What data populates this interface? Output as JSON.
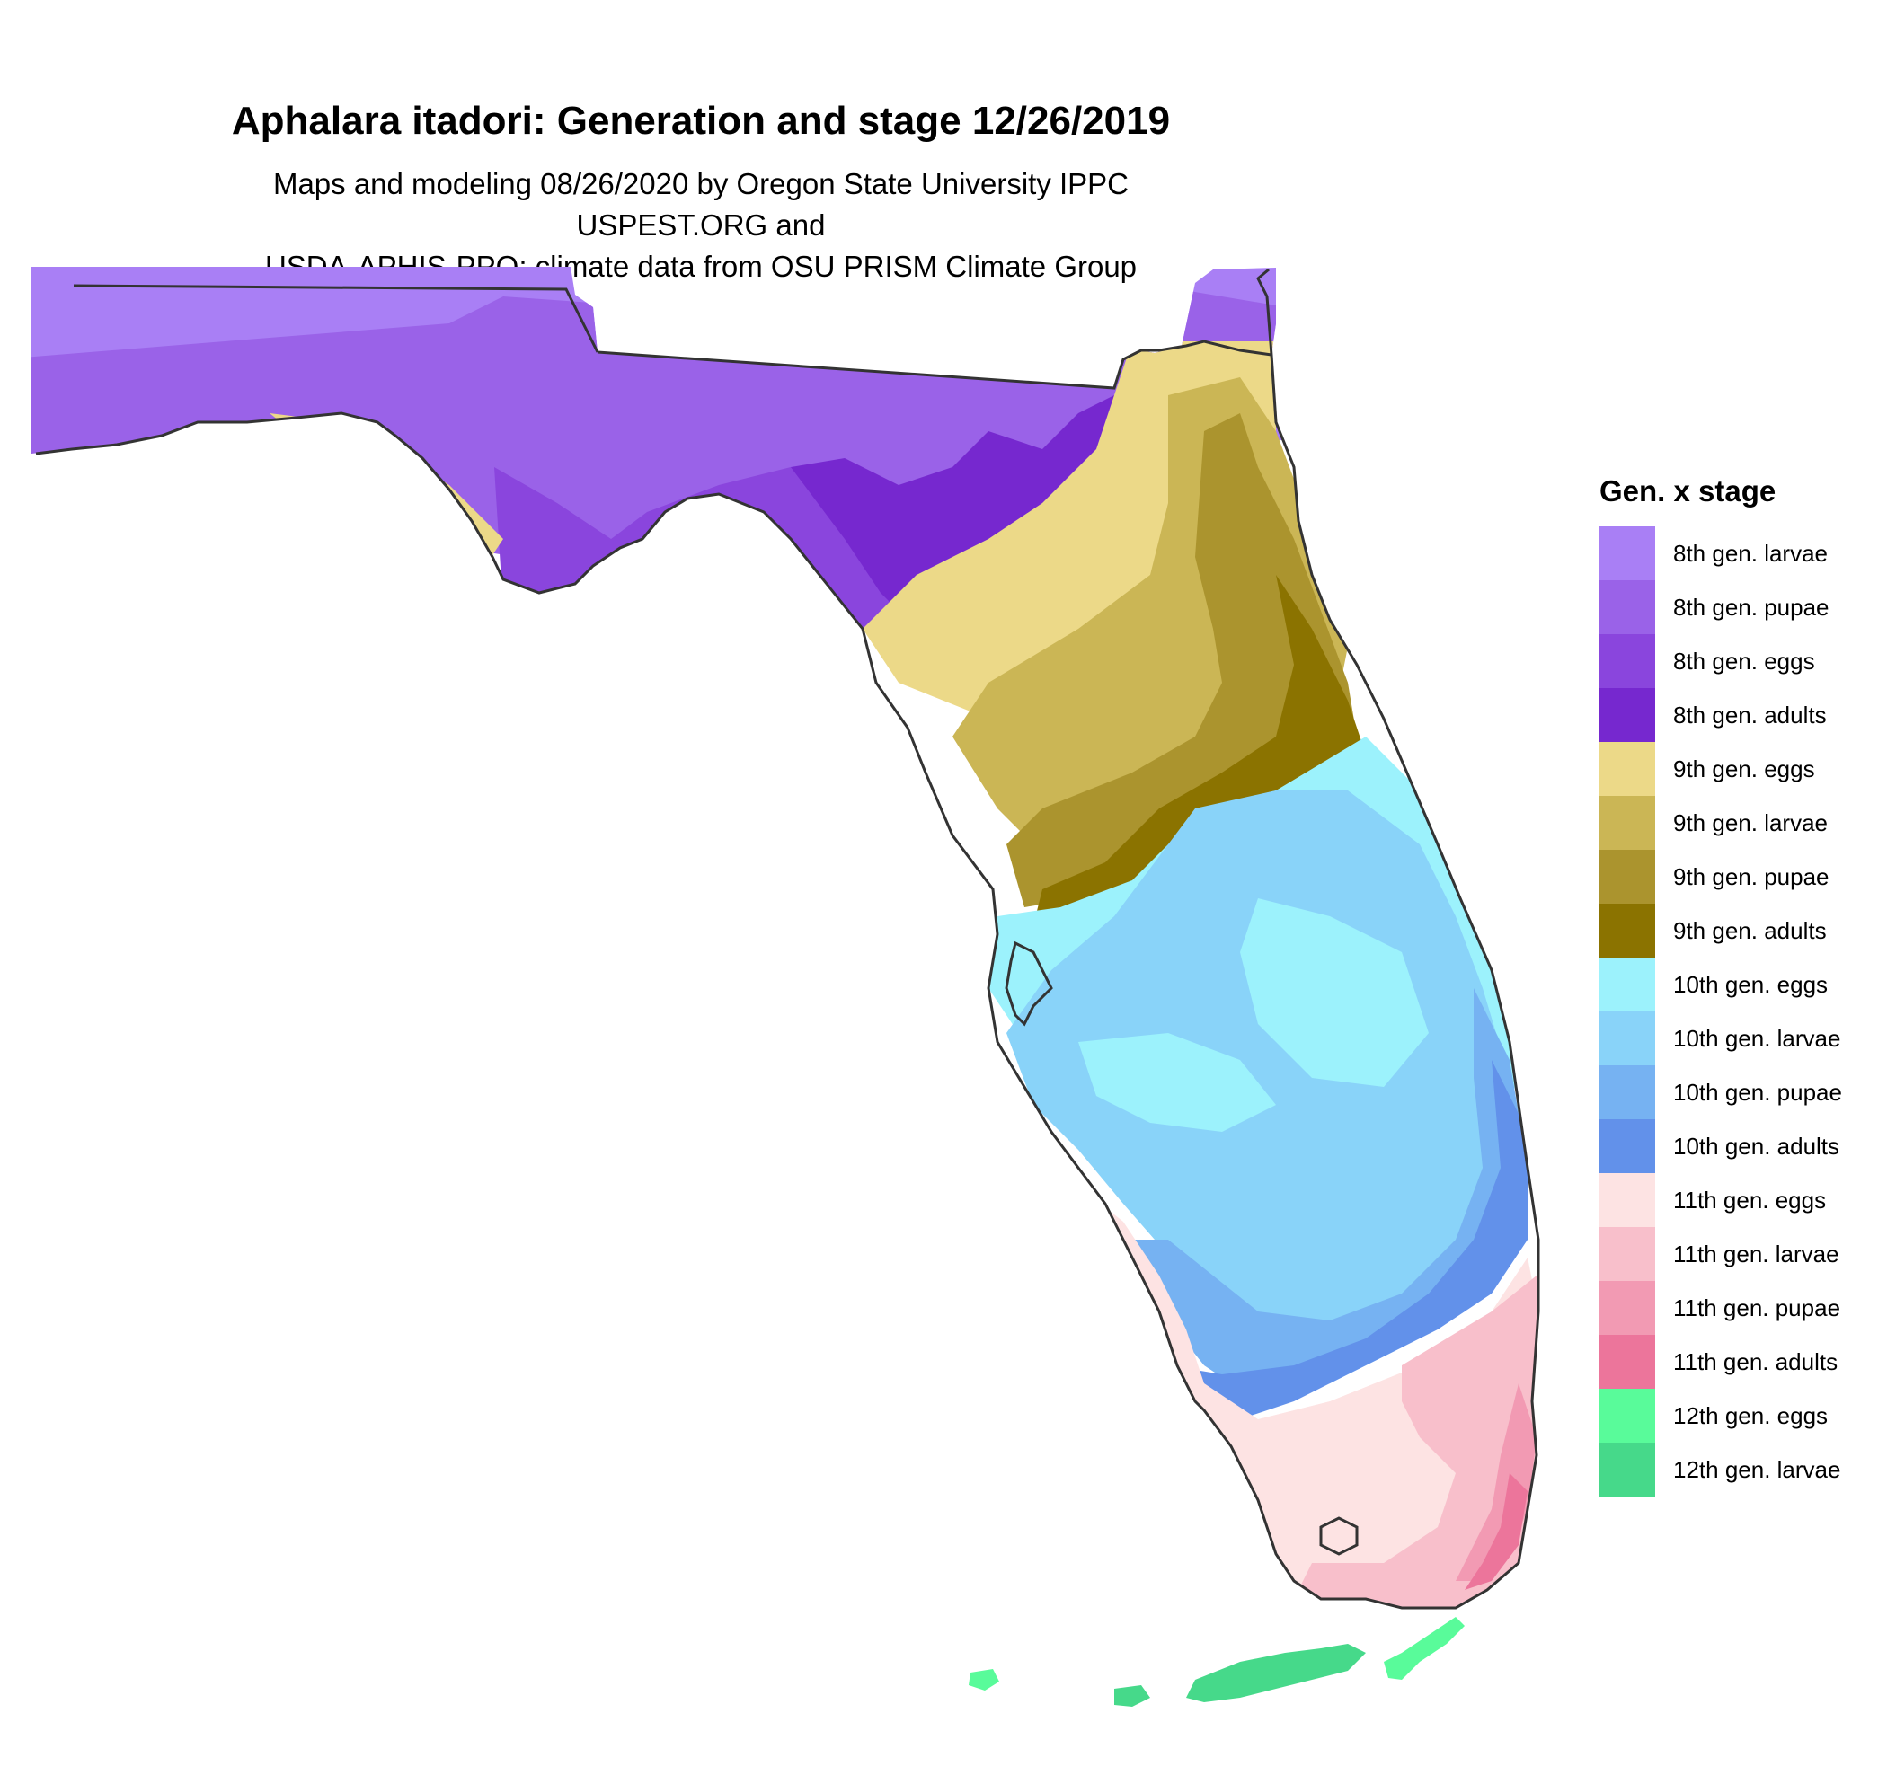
{
  "title": "Aphalara itadori: Generation and stage 12/26/2019",
  "subtitle_line1": "Maps and modeling 08/26/2020 by Oregon State University IPPC USPEST.ORG and",
  "subtitle_line2": "USDA-APHIS-PPQ; climate data from OSU PRISM Climate Group",
  "legend": {
    "title": "Gen. x stage",
    "items": [
      {
        "label": "8th gen. larvae",
        "color": "#a97ff5"
      },
      {
        "label": "8th gen. pupae",
        "color": "#9a62e8"
      },
      {
        "label": "8th gen. eggs",
        "color": "#8a45dd"
      },
      {
        "label": "8th gen. adults",
        "color": "#7628cf"
      },
      {
        "label": "9th gen. eggs",
        "color": "#ecd988"
      },
      {
        "label": "9th gen. larvae",
        "color": "#cbb655"
      },
      {
        "label": "9th gen. pupae",
        "color": "#ab942e"
      },
      {
        "label": "9th gen. adults",
        "color": "#8b7300"
      },
      {
        "label": "10th gen. eggs",
        "color": "#9cf2fc"
      },
      {
        "label": "10th gen. larvae",
        "color": "#89d3f9"
      },
      {
        "label": "10th gen. pupae",
        "color": "#76b2f2"
      },
      {
        "label": "10th gen. adults",
        "color": "#6291ea"
      },
      {
        "label": "11th gen. eggs",
        "color": "#fde3e3"
      },
      {
        "label": "11th gen. larvae",
        "color": "#f8bfcb"
      },
      {
        "label": "11th gen. pupae",
        "color": "#f29ab3"
      },
      {
        "label": "11th gen. adults",
        "color": "#ec759b"
      },
      {
        "label": "12th gen. eggs",
        "color": "#59fb9a"
      },
      {
        "label": "12th gen. larvae",
        "color": "#46d98a"
      }
    ]
  }
}
